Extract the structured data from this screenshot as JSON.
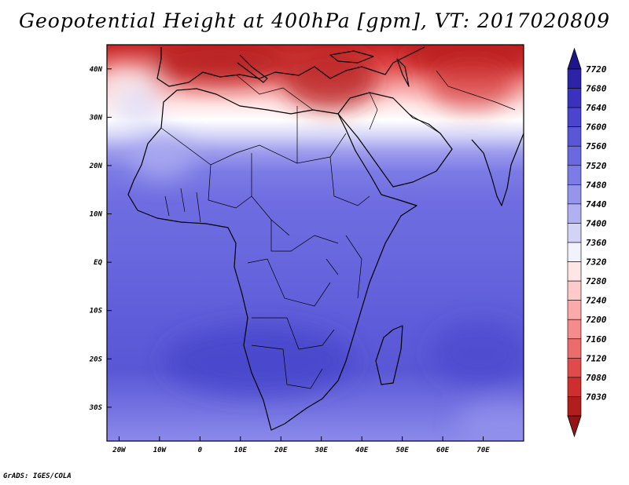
{
  "title": "Geopotential Height at 400hPa [gpm], VT: 2017020809",
  "credit": "GrADS: IGES/COLA",
  "map": {
    "lon_range": [
      -23,
      80
    ],
    "lat_range": [
      -37,
      45
    ],
    "lat_ticks": [
      {
        "value": 40,
        "label": "40N"
      },
      {
        "value": 30,
        "label": "30N"
      },
      {
        "value": 20,
        "label": "20N"
      },
      {
        "value": 10,
        "label": "10N"
      },
      {
        "value": 0,
        "label": "EQ"
      },
      {
        "value": -10,
        "label": "10S"
      },
      {
        "value": -20,
        "label": "20S"
      },
      {
        "value": -30,
        "label": "30S"
      }
    ],
    "lon_ticks": [
      {
        "value": -20,
        "label": "20W"
      },
      {
        "value": -10,
        "label": "10W"
      },
      {
        "value": 0,
        "label": "0"
      },
      {
        "value": 10,
        "label": "10E"
      },
      {
        "value": 20,
        "label": "20E"
      },
      {
        "value": 30,
        "label": "30E"
      },
      {
        "value": 40,
        "label": "40E"
      },
      {
        "value": 50,
        "label": "50E"
      },
      {
        "value": 60,
        "label": "60E"
      },
      {
        "value": 70,
        "label": "70E"
      }
    ]
  },
  "colorbar": {
    "levels": [
      "7720",
      "7680",
      "7640",
      "7600",
      "7560",
      "7520",
      "7480",
      "7440",
      "7400",
      "7360",
      "7320",
      "7280",
      "7240",
      "7200",
      "7160",
      "7120",
      "7080",
      "7030"
    ],
    "colors": [
      "#1e148c",
      "#2b23a8",
      "#3a32bf",
      "#4a44cf",
      "#5a56d8",
      "#6b69df",
      "#7d7ce6",
      "#9595ec",
      "#b1b1f2",
      "#d3d3f8",
      "#f2f2ff",
      "#ffe6e6",
      "#ffcaca",
      "#fbaaaa",
      "#f48c8c",
      "#ec6b6b",
      "#e14a4a",
      "#cf2e2e",
      "#b21d1d",
      "#921414"
    ]
  }
}
